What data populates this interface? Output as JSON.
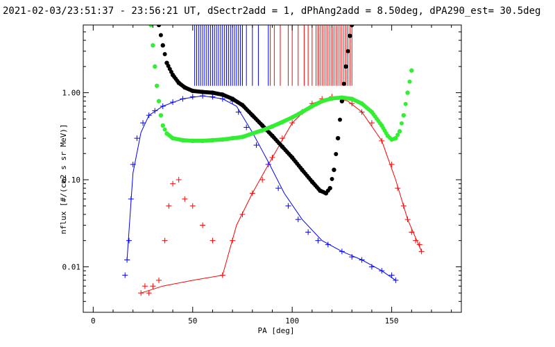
{
  "chart_data": {
    "type": "scatter",
    "title": "2021-02-03/23:51:37 - 23:56:21 UT, dSectr2add = 1, dPhAng2add = 8.50deg, dPA290_est=  30.5deg",
    "xlabel": "PA [deg]",
    "ylabel": "nflux [#/(cm2 s sr MeV)]",
    "xlim": [
      -5,
      185
    ],
    "ylim": [
      0.003,
      6.0
    ],
    "yscale": "log",
    "grid": false,
    "x_ticks": [
      0,
      50,
      100,
      150
    ],
    "x_tick_labels": [
      "0",
      "50",
      "100",
      "150"
    ],
    "y_ticks": [
      0.01,
      0.1,
      1.0
    ],
    "y_tick_labels": [
      "0.01",
      "0.10",
      "1.00"
    ],
    "series": [
      {
        "color": "#0000ff",
        "marker": "plus",
        "points": [
          [
            16,
            0.008
          ],
          [
            17,
            0.012
          ],
          [
            18,
            0.02
          ],
          [
            19,
            0.06
          ],
          [
            20,
            0.15
          ],
          [
            22,
            0.3
          ],
          [
            25,
            0.45
          ],
          [
            28,
            0.55
          ],
          [
            31,
            0.62
          ],
          [
            35,
            0.7
          ],
          [
            40,
            0.78
          ],
          [
            45,
            0.85
          ],
          [
            50,
            0.9
          ],
          [
            55,
            0.92
          ],
          [
            60,
            0.9
          ],
          [
            65,
            0.85
          ],
          [
            70,
            0.8
          ],
          [
            73,
            0.6
          ],
          [
            77,
            0.4
          ],
          [
            82,
            0.25
          ],
          [
            88,
            0.15
          ],
          [
            93,
            0.08
          ],
          [
            98,
            0.05
          ],
          [
            103,
            0.035
          ],
          [
            108,
            0.025
          ],
          [
            113,
            0.02
          ],
          [
            118,
            0.018
          ],
          [
            125,
            0.015
          ],
          [
            130,
            0.013
          ],
          [
            135,
            0.012
          ],
          [
            140,
            0.01
          ],
          [
            145,
            0.009
          ],
          [
            150,
            0.008
          ],
          [
            152,
            0.007
          ]
        ],
        "trend": [
          [
            17,
            0.012
          ],
          [
            20,
            0.12
          ],
          [
            24,
            0.35
          ],
          [
            28,
            0.55
          ],
          [
            35,
            0.7
          ],
          [
            45,
            0.85
          ],
          [
            55,
            0.92
          ],
          [
            65,
            0.85
          ],
          [
            72,
            0.7
          ],
          [
            80,
            0.35
          ],
          [
            88,
            0.16
          ],
          [
            96,
            0.07
          ],
          [
            105,
            0.035
          ],
          [
            115,
            0.02
          ],
          [
            125,
            0.015
          ],
          [
            135,
            0.012
          ],
          [
            145,
            0.009
          ],
          [
            152,
            0.007
          ]
        ],
        "vlines_x": [
          51,
          52,
          53,
          54,
          55,
          56,
          57,
          58,
          59,
          60,
          61,
          62,
          63,
          64,
          65,
          66,
          67,
          68,
          69,
          70,
          71,
          72,
          73,
          74,
          75,
          77,
          80,
          83,
          88
        ]
      },
      {
        "color": "#ff0000",
        "marker": "plus",
        "points": [
          [
            24,
            0.005
          ],
          [
            26,
            0.006
          ],
          [
            28,
            0.005
          ],
          [
            30,
            0.006
          ],
          [
            33,
            0.007
          ],
          [
            36,
            0.02
          ],
          [
            38,
            0.05
          ],
          [
            40,
            0.09
          ],
          [
            43,
            0.1
          ],
          [
            46,
            0.06
          ],
          [
            50,
            0.05
          ],
          [
            55,
            0.03
          ],
          [
            60,
            0.02
          ],
          [
            65,
            0.008
          ],
          [
            70,
            0.02
          ],
          [
            75,
            0.04
          ],
          [
            80,
            0.07
          ],
          [
            85,
            0.1
          ],
          [
            90,
            0.18
          ],
          [
            95,
            0.3
          ],
          [
            100,
            0.45
          ],
          [
            105,
            0.6
          ],
          [
            110,
            0.75
          ],
          [
            115,
            0.85
          ],
          [
            120,
            0.9
          ],
          [
            125,
            0.85
          ],
          [
            130,
            0.75
          ],
          [
            135,
            0.6
          ],
          [
            140,
            0.45
          ],
          [
            145,
            0.28
          ],
          [
            150,
            0.15
          ],
          [
            153,
            0.08
          ],
          [
            156,
            0.05
          ],
          [
            158,
            0.035
          ],
          [
            160,
            0.025
          ],
          [
            162,
            0.02
          ],
          [
            164,
            0.018
          ],
          [
            165,
            0.015
          ]
        ],
        "trend": [
          [
            24,
            0.005
          ],
          [
            35,
            0.006
          ],
          [
            50,
            0.007
          ],
          [
            65,
            0.008
          ],
          [
            72,
            0.03
          ],
          [
            80,
            0.07
          ],
          [
            90,
            0.18
          ],
          [
            100,
            0.45
          ],
          [
            110,
            0.75
          ],
          [
            120,
            0.9
          ],
          [
            128,
            0.8
          ],
          [
            135,
            0.6
          ],
          [
            145,
            0.28
          ],
          [
            152,
            0.1
          ],
          [
            158,
            0.035
          ],
          [
            165,
            0.015
          ]
        ],
        "vlines_x": [
          89,
          91,
          94,
          98,
          100,
          103,
          106,
          108,
          110,
          112,
          113,
          114,
          115,
          116,
          117,
          118,
          119,
          120,
          121,
          122,
          123,
          124,
          125,
          126,
          127,
          128,
          129,
          130
        ]
      },
      {
        "color": "#000000",
        "marker": "dot",
        "points": [
          [
            33,
            6.0
          ],
          [
            35,
            3.5
          ],
          [
            37,
            2.2
          ],
          [
            40,
            1.6
          ],
          [
            43,
            1.3
          ],
          [
            46,
            1.15
          ],
          [
            50,
            1.05
          ],
          [
            55,
            1.02
          ],
          [
            60,
            1.0
          ],
          [
            65,
            0.95
          ],
          [
            70,
            0.85
          ],
          [
            75,
            0.72
          ],
          [
            80,
            0.55
          ],
          [
            85,
            0.42
          ],
          [
            90,
            0.32
          ],
          [
            95,
            0.24
          ],
          [
            100,
            0.18
          ],
          [
            105,
            0.13
          ],
          [
            110,
            0.095
          ],
          [
            114,
            0.075
          ],
          [
            117,
            0.07
          ],
          [
            119,
            0.08
          ],
          [
            121,
            0.13
          ],
          [
            123,
            0.3
          ],
          [
            125,
            0.8
          ],
          [
            127,
            2.0
          ],
          [
            129,
            4.5
          ],
          [
            130,
            6.0
          ]
        ]
      },
      {
        "color": "#33ee33",
        "marker": "dot",
        "points": [
          [
            29,
            6.0
          ],
          [
            30,
            3.5
          ],
          [
            31,
            2.0
          ],
          [
            32,
            1.2
          ],
          [
            33,
            0.8
          ],
          [
            34,
            0.55
          ],
          [
            35,
            0.42
          ],
          [
            37,
            0.34
          ],
          [
            40,
            0.3
          ],
          [
            45,
            0.285
          ],
          [
            50,
            0.28
          ],
          [
            55,
            0.28
          ],
          [
            60,
            0.285
          ],
          [
            65,
            0.29
          ],
          [
            70,
            0.3
          ],
          [
            75,
            0.31
          ],
          [
            80,
            0.34
          ],
          [
            85,
            0.37
          ],
          [
            90,
            0.41
          ],
          [
            95,
            0.46
          ],
          [
            100,
            0.52
          ],
          [
            105,
            0.6
          ],
          [
            110,
            0.7
          ],
          [
            115,
            0.8
          ],
          [
            120,
            0.86
          ],
          [
            125,
            0.88
          ],
          [
            130,
            0.85
          ],
          [
            135,
            0.75
          ],
          [
            140,
            0.6
          ],
          [
            145,
            0.42
          ],
          [
            148,
            0.32
          ],
          [
            150,
            0.29
          ],
          [
            152,
            0.3
          ],
          [
            154,
            0.36
          ],
          [
            156,
            0.55
          ],
          [
            158,
            1.0
          ],
          [
            160,
            1.8
          ]
        ]
      }
    ]
  }
}
